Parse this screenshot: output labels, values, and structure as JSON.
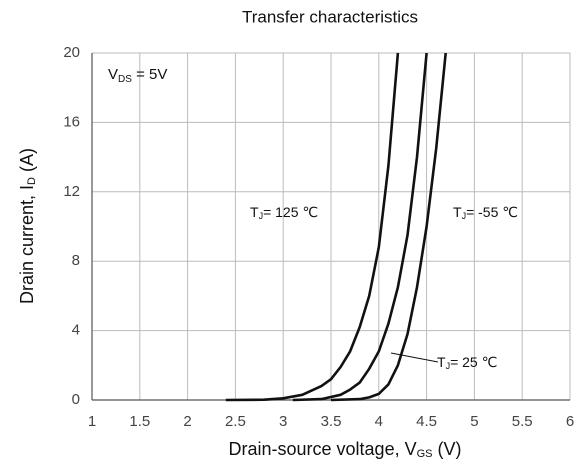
{
  "chart_data": {
    "type": "line",
    "title": "Transfer characteristics",
    "xlabel": {
      "main": "Drain-source voltage, V",
      "sub": "GS",
      "rest": " (V)"
    },
    "ylabel": {
      "main": "Drain current, I",
      "sub": "D",
      "rest": " (A)"
    },
    "annotation": {
      "main": "V",
      "sub": "DS",
      "rest": " = 5V"
    },
    "xlim": [
      1,
      6
    ],
    "ylim": [
      0,
      20
    ],
    "xticks": [
      1,
      1.5,
      2,
      2.5,
      3,
      3.5,
      4,
      4.5,
      5,
      5.5,
      6
    ],
    "yticks": [
      0,
      4,
      8,
      12,
      16,
      20
    ],
    "grid": true,
    "series": [
      {
        "label": {
          "main": "T",
          "sub": "J",
          "rest": "= 125 ℃"
        },
        "color": "#111111",
        "x": [
          2.4,
          2.8,
          3.0,
          3.2,
          3.4,
          3.5,
          3.6,
          3.7,
          3.8,
          3.9,
          4.0,
          4.1,
          4.2
        ],
        "y": [
          0,
          0.02,
          0.1,
          0.3,
          0.8,
          1.2,
          1.9,
          2.8,
          4.2,
          6,
          8.8,
          13.5,
          20
        ]
      },
      {
        "label": {
          "main": "T",
          "sub": "J",
          "rest": "= 25 ℃"
        },
        "color": "#111111",
        "x": [
          3.1,
          3.4,
          3.6,
          3.7,
          3.8,
          3.9,
          4.0,
          4.1,
          4.2,
          4.3,
          4.4,
          4.5
        ],
        "y": [
          0,
          0.05,
          0.3,
          0.6,
          1.0,
          1.8,
          2.8,
          4.4,
          6.5,
          9.5,
          14,
          20
        ]
      },
      {
        "label": {
          "main": "T",
          "sub": "J",
          "rest": "= -55 ℃"
        },
        "color": "#111111",
        "x": [
          3.5,
          3.8,
          3.9,
          4.0,
          4.1,
          4.2,
          4.3,
          4.4,
          4.5,
          4.6,
          4.7
        ],
        "y": [
          0,
          0.05,
          0.15,
          0.35,
          0.9,
          2,
          3.8,
          6.5,
          10,
          14.5,
          20
        ]
      }
    ]
  }
}
